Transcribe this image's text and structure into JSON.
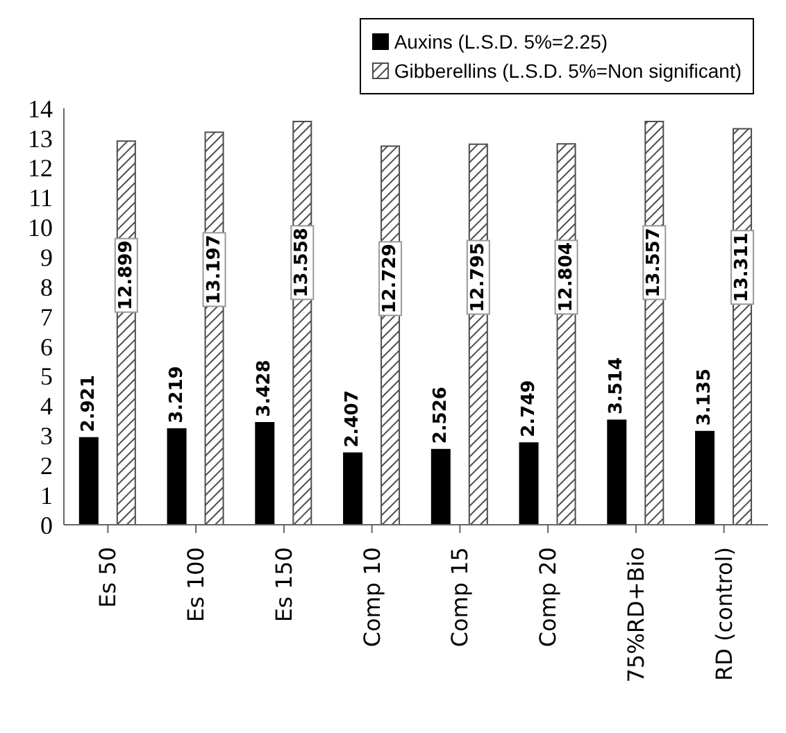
{
  "chart_data": {
    "type": "bar",
    "categories": [
      "Es 50",
      "Es 100",
      "Es 150",
      "Comp 10",
      "Comp 15",
      "Comp 20",
      "75%RD+Bio",
      "RD (control)"
    ],
    "series": [
      {
        "name": "Auxins  (L.S.D. 5%=2.25)",
        "color": "#000000",
        "values": [
          2.921,
          3.219,
          3.428,
          2.407,
          2.526,
          2.749,
          3.514,
          3.135
        ]
      },
      {
        "name": "Gibberellins  (L.S.D. 5%=Non significant)",
        "color": "#4d4d4d",
        "values": [
          12.899,
          13.197,
          13.558,
          12.729,
          12.795,
          12.804,
          13.557,
          13.311
        ]
      }
    ],
    "ylim": [
      0,
      14
    ],
    "yticks": [
      0,
      1,
      2,
      3,
      4,
      5,
      6,
      7,
      8,
      9,
      10,
      11,
      12,
      13,
      14
    ],
    "grid": false,
    "legend": "top right",
    "data_labels": true
  }
}
